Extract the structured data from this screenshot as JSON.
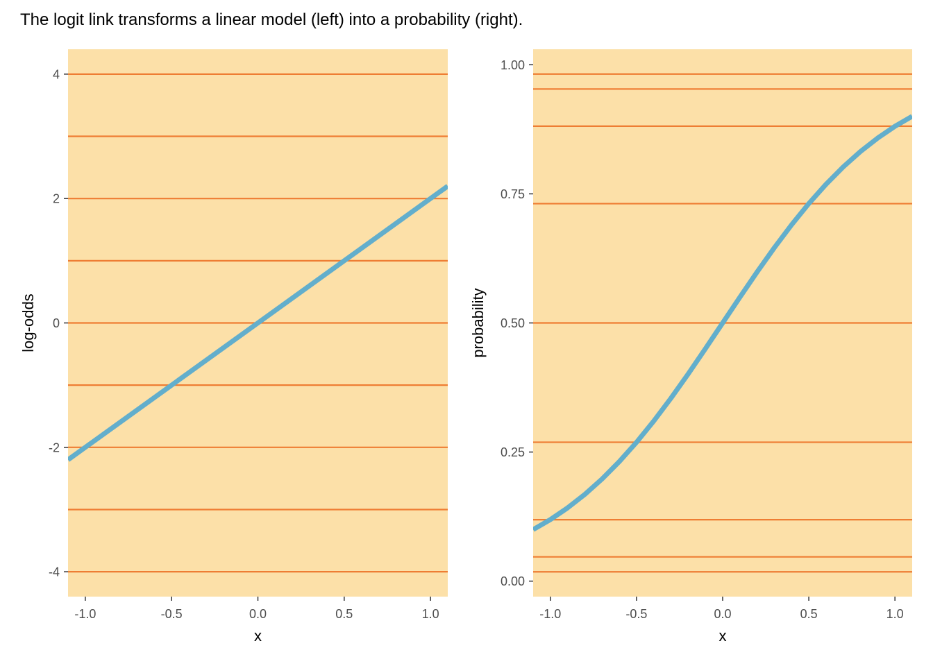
{
  "title": "The logit link transforms a linear model (left) into a probability (right).",
  "colors": {
    "panel_background": "#FCE0A8",
    "reference_lines": "#EE7D33",
    "curve": "#62AECC",
    "tick_text": "#4d4d4d"
  },
  "chart_data": [
    {
      "type": "line",
      "xlabel": "x",
      "ylabel": "log-odds",
      "xlim": [
        -1.1,
        1.1
      ],
      "ylim": [
        -4.4,
        4.4
      ],
      "x_ticks": [
        -1.0,
        -0.5,
        0.0,
        0.5,
        1.0
      ],
      "x_tick_labels": [
        "-1.0",
        "-0.5",
        "0.0",
        "0.5",
        "1.0"
      ],
      "y_ticks": [
        -4,
        -2,
        0,
        2,
        4
      ],
      "y_tick_labels": [
        "-4",
        "-2",
        "0",
        "2",
        "4"
      ],
      "grid": false,
      "hlines": [
        -4,
        -3,
        -2,
        -1,
        0,
        1,
        2,
        3,
        4
      ],
      "series": [
        {
          "function": "log-odds = 2x",
          "x": [
            -1.1,
            1.1
          ],
          "y": [
            -2.2,
            2.2
          ]
        }
      ]
    },
    {
      "type": "line",
      "xlabel": "x",
      "ylabel": "probability",
      "xlim": [
        -1.1,
        1.1
      ],
      "ylim": [
        -0.03,
        1.03
      ],
      "x_ticks": [
        -1.0,
        -0.5,
        0.0,
        0.5,
        1.0
      ],
      "x_tick_labels": [
        "-1.0",
        "-0.5",
        "0.0",
        "0.5",
        "1.0"
      ],
      "y_ticks": [
        0,
        0.25,
        0.5,
        0.75,
        1.0
      ],
      "y_tick_labels": [
        "0.00",
        "0.25",
        "0.50",
        "0.75",
        "1.00"
      ],
      "grid": false,
      "hlines": [
        0.018,
        0.047,
        0.119,
        0.269,
        0.5,
        0.731,
        0.881,
        0.953,
        0.982
      ],
      "series": [
        {
          "function": "probability = 1 / (1 + exp(-2x))",
          "x": [
            -1.1,
            -1.0,
            -0.9,
            -0.8,
            -0.7,
            -0.6,
            -0.5,
            -0.4,
            -0.3,
            -0.2,
            -0.1,
            0.0,
            0.1,
            0.2,
            0.3,
            0.4,
            0.5,
            0.6,
            0.7,
            0.8,
            0.9,
            1.0,
            1.1
          ],
          "y": [
            0.0998,
            0.1192,
            0.1419,
            0.168,
            0.1978,
            0.2315,
            0.2689,
            0.31,
            0.3543,
            0.4013,
            0.4502,
            0.5,
            0.5498,
            0.5987,
            0.6457,
            0.69,
            0.7311,
            0.7685,
            0.8022,
            0.832,
            0.8581,
            0.8808,
            0.9002
          ]
        }
      ]
    }
  ]
}
